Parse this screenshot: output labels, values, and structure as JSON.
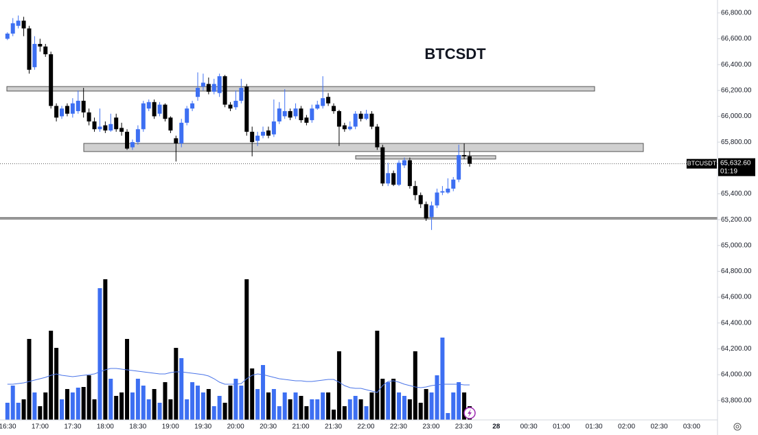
{
  "chart_data": {
    "type": "candlestick",
    "title": "BTCSDT",
    "symbol_label": "BTCUSDT",
    "last_price": {
      "value": 65632.6,
      "label": "65,632.60"
    },
    "countdown": "01:19",
    "up_color": "#3d6ff2",
    "down_color": "#000000",
    "xtick_labels": [
      "16:30",
      "17:00",
      "17:30",
      "18:00",
      "18:30",
      "19:00",
      "19:30",
      "20:00",
      "20:30",
      "21:00",
      "21:30",
      "22:00",
      "22:30",
      "23:00",
      "23:30",
      "28",
      "00:30",
      "01:00",
      "01:30",
      "02:00",
      "02:30",
      "03:00"
    ],
    "ylim": [
      63650,
      66900
    ],
    "yticks": [
      {
        "value": 63800,
        "label": "63,800.00"
      },
      {
        "value": 64000,
        "label": "64,000.00"
      },
      {
        "value": 64200,
        "label": "64,200.00"
      },
      {
        "value": 64400,
        "label": "64,400.00"
      },
      {
        "value": 64600,
        "label": "64,600.00"
      },
      {
        "value": 64800,
        "label": "64,800.00"
      },
      {
        "value": 65000,
        "label": "65,000.00"
      },
      {
        "value": 65200,
        "label": "65,200.00"
      },
      {
        "value": 65400,
        "label": "65,400.00"
      },
      {
        "value": 65600,
        "label": "65,600.00"
      },
      {
        "value": 65800,
        "label": "65,800.00"
      },
      {
        "value": 66000,
        "label": "66,000.00"
      },
      {
        "value": 66200,
        "label": "66,200.00"
      },
      {
        "value": 66400,
        "label": "66,400.00"
      },
      {
        "value": 66600,
        "label": "66,600.00"
      },
      {
        "value": 66800,
        "label": "66,800.00"
      }
    ],
    "zones": [
      {
        "low": 66195,
        "high": 66230
      },
      {
        "low": 65727,
        "high": 65790
      },
      {
        "low": 65669,
        "high": 65695
      }
    ],
    "support_lines": [
      65205,
      65215
    ],
    "open": [
      66600,
      66640,
      66700,
      66740,
      66680,
      66380,
      66560,
      66540,
      66480,
      66080,
      66000,
      66080,
      66020,
      66040,
      66120,
      66030,
      65960,
      65900,
      65930,
      65890,
      65990,
      65910,
      65880,
      65760,
      65800,
      65900,
      66060,
      66110,
      66020,
      66090,
      65990,
      65830,
      65790,
      65950,
      66060,
      66150,
      66230,
      66250,
      66190,
      66180,
      66310,
      66090,
      66070,
      66120,
      66230,
      65880,
      65810,
      65850,
      65890,
      65860,
      65960,
      66000,
      66040,
      66000,
      66060,
      65990,
      65970,
      66060,
      66080,
      66150,
      66080,
      66040,
      65930,
      65900,
      65920,
      66020,
      65980,
      66020,
      65920,
      65760,
      65480,
      65560,
      65470,
      65620,
      65660,
      65460,
      65390,
      65320,
      65220,
      65310,
      65410,
      65410,
      65440,
      65510,
      65700,
      65690
    ],
    "high": [
      66650,
      66760,
      66780,
      66770,
      66700,
      66620,
      66600,
      66560,
      66500,
      66100,
      66080,
      66100,
      66140,
      66200,
      66220,
      66060,
      65990,
      66060,
      65960,
      66020,
      66020,
      65950,
      65900,
      65820,
      65930,
      66120,
      66130,
      66130,
      66110,
      66100,
      66000,
      65850,
      65980,
      66080,
      66120,
      66340,
      66330,
      66300,
      66290,
      66330,
      66320,
      66110,
      66200,
      66290,
      66250,
      65920,
      65880,
      65920,
      65920,
      66130,
      66110,
      66210,
      66060,
      66100,
      66080,
      66010,
      66090,
      66120,
      66310,
      66180,
      66100,
      66050,
      65950,
      65960,
      66040,
      66040,
      66050,
      66040,
      65940,
      65780,
      65640,
      65580,
      65660,
      65680,
      65680,
      65500,
      65410,
      65340,
      65340,
      65440,
      65460,
      65520,
      65530,
      65780,
      65790,
      65730
    ],
    "low": [
      66590,
      66620,
      66680,
      66620,
      66330,
      66360,
      66500,
      66460,
      66060,
      65960,
      65980,
      66000,
      65990,
      66020,
      65990,
      65930,
      65880,
      65880,
      65870,
      65880,
      65880,
      65850,
      65740,
      65740,
      65780,
      65880,
      66040,
      65980,
      66000,
      65960,
      65870,
      65650,
      65760,
      65930,
      66040,
      66120,
      66200,
      66170,
      66170,
      66150,
      66070,
      66040,
      66050,
      66100,
      65850,
      65690,
      65770,
      65830,
      65830,
      65840,
      65940,
      65980,
      65970,
      65980,
      65950,
      65930,
      65950,
      66050,
      66060,
      66080,
      66020,
      65770,
      65880,
      65890,
      65900,
      65960,
      65970,
      65900,
      65740,
      65460,
      65460,
      65460,
      65460,
      65600,
      65440,
      65350,
      65290,
      65190,
      65120,
      65290,
      65390,
      65400,
      65420,
      65490,
      65670,
      65610
    ],
    "close": [
      66640,
      66720,
      66740,
      66680,
      66360,
      66560,
      66540,
      66480,
      66080,
      65990,
      66060,
      66020,
      66100,
      66120,
      66030,
      65960,
      65900,
      65920,
      65890,
      65940,
      65900,
      65880,
      65750,
      65800,
      65900,
      66100,
      66110,
      66000,
      66090,
      65980,
      65890,
      65790,
      65950,
      66060,
      66100,
      66220,
      66260,
      66190,
      66250,
      66310,
      66090,
      66060,
      66120,
      66220,
      65880,
      65800,
      65850,
      65880,
      65850,
      65960,
      66060,
      66040,
      65990,
      66060,
      65970,
      65950,
      66060,
      66090,
      66140,
      66100,
      66040,
      65920,
      65900,
      65920,
      66020,
      65980,
      66020,
      65920,
      65760,
      65480,
      65560,
      65470,
      65640,
      65660,
      65460,
      65390,
      65320,
      65210,
      65310,
      65410,
      65420,
      65440,
      65510,
      65700,
      65690,
      65632.6
    ],
    "volume_lim": [
      0,
      210
    ],
    "volume": [
      25,
      50,
      25,
      30,
      118,
      40,
      20,
      40,
      130,
      105,
      30,
      45,
      40,
      47,
      48,
      65,
      30,
      192,
      205,
      60,
      35,
      40,
      118,
      40,
      60,
      50,
      30,
      45,
      25,
      55,
      30,
      105,
      90,
      30,
      55,
      50,
      40,
      45,
      20,
      35,
      25,
      50,
      60,
      50,
      205,
      75,
      45,
      80,
      40,
      45,
      20,
      40,
      30,
      40,
      35,
      20,
      30,
      30,
      40,
      40,
      15,
      100,
      20,
      30,
      35,
      30,
      20,
      40,
      130,
      60,
      55,
      60,
      40,
      35,
      30,
      100,
      25,
      45,
      40,
      65,
      120,
      10,
      40,
      55,
      40,
      20
    ],
    "volume_ma": [
      52,
      52,
      53,
      54,
      56,
      58,
      60,
      62,
      65,
      67,
      65,
      64,
      63,
      64,
      65,
      66,
      67,
      70,
      73,
      75,
      75,
      74,
      73,
      72,
      71,
      70,
      69,
      68,
      67,
      67,
      69,
      70,
      70,
      69,
      68,
      67,
      66,
      64,
      60,
      55,
      52,
      52,
      52,
      53,
      60,
      65,
      67,
      66,
      64,
      62,
      60,
      59,
      58,
      57,
      57,
      56,
      56,
      57,
      58,
      59,
      59,
      55,
      50,
      47,
      46,
      46,
      44,
      42,
      40,
      50,
      56,
      57,
      55,
      52,
      50,
      48,
      47,
      48,
      50,
      51,
      52,
      52,
      52,
      52,
      51,
      51
    ]
  }
}
